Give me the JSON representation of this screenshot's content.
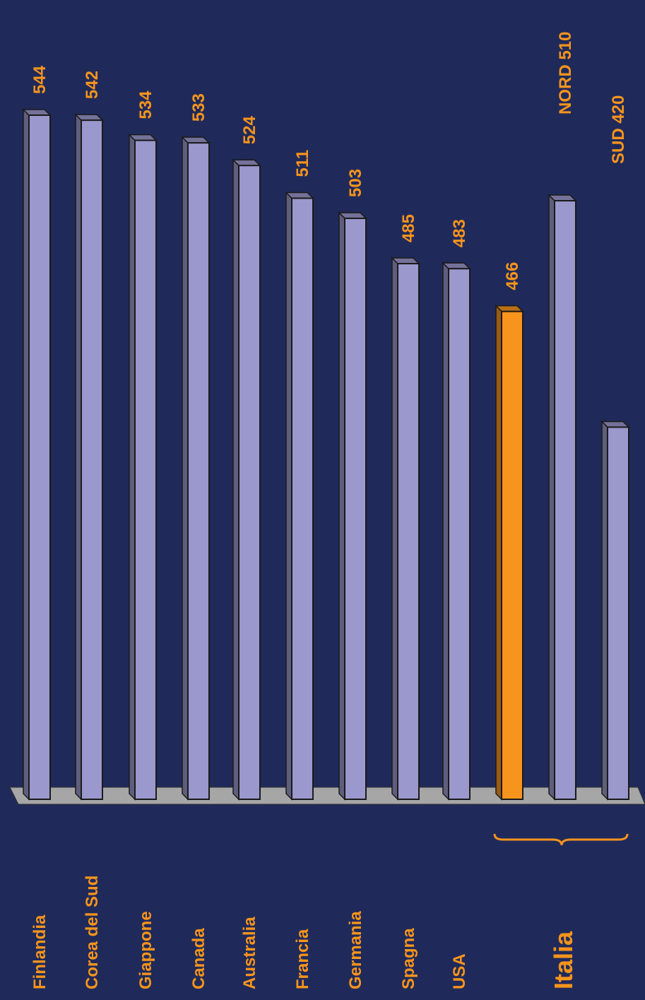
{
  "chart_data": {
    "type": "bar",
    "orientation": "horizontal, rotated 90° (labels read bottom-to-top)",
    "categories": [
      "Finlandia",
      "Corea del Sud",
      "Giappone",
      "Canada",
      "Australia",
      "Francia",
      "Germania",
      "Spagna",
      "USA",
      "Italia",
      "NORD",
      "SUD"
    ],
    "values": [
      544,
      542,
      534,
      533,
      524,
      511,
      503,
      485,
      483,
      466,
      510,
      420
    ],
    "value_labels": [
      "544",
      "542",
      "534",
      "533",
      "524",
      "511",
      "503",
      "485",
      "483",
      "466",
      "NORD 510",
      "SUD 420"
    ],
    "highlight_category": "Italia",
    "group_label": "Italia",
    "group_members": [
      "Italia",
      "NORD",
      "SUD"
    ],
    "colors": {
      "background": "#1f2a5a",
      "bar": "#9a98cc",
      "bar_highlight": "#f7941d",
      "label": "#f7941d",
      "label_white": "#ffffff",
      "floor": "#a6a6a6"
    },
    "grid": false,
    "legend": "none"
  }
}
